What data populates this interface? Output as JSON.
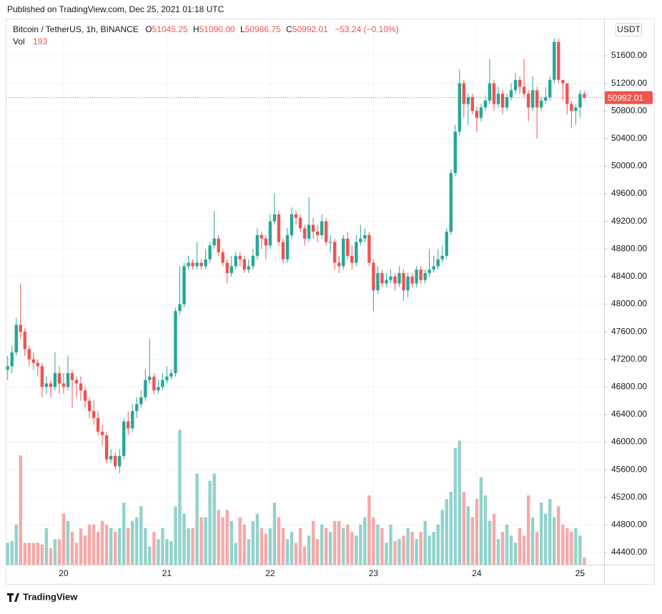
{
  "published": "Published on TradingView.com, Dec 25, 2021 01:18 UTC",
  "brand": "TradingView",
  "chart_data": {
    "type": "candlestick",
    "title": "Bitcoin / TetherUS, 1h, BINANCE",
    "readout": [
      {
        "key": "O",
        "value": "51045.25"
      },
      {
        "key": "H",
        "value": "51090.00"
      },
      {
        "key": "L",
        "value": "50986.75"
      },
      {
        "key": "C",
        "value": "50992.01"
      }
    ],
    "change": "−53.24 (−0.10%)",
    "volume_key": "Vol",
    "volume_readout": "193",
    "currency": "USDT",
    "last_price_label": "50992.01",
    "up_color": "#26a69a",
    "down_color": "#ef5350",
    "grid": true,
    "ylim": [
      44224,
      52097
    ],
    "yticks": [
      {
        "value": 44400,
        "label": "44400.00"
      },
      {
        "value": 44800,
        "label": "44800.00"
      },
      {
        "value": 45200,
        "label": "45200.00"
      },
      {
        "value": 45600,
        "label": "45600.00"
      },
      {
        "value": 46000,
        "label": "46000.00"
      },
      {
        "value": 46400,
        "label": "46400.00"
      },
      {
        "value": 46800,
        "label": "46800.00"
      },
      {
        "value": 47200,
        "label": "47200.00"
      },
      {
        "value": 47600,
        "label": "47600.00"
      },
      {
        "value": 48000,
        "label": "48000.00"
      },
      {
        "value": 48400,
        "label": "48400.00"
      },
      {
        "value": 48800,
        "label": "48800.00"
      },
      {
        "value": 49200,
        "label": "49200.00"
      },
      {
        "value": 49600,
        "label": "49600.00"
      },
      {
        "value": 50000,
        "label": "50000.00"
      },
      {
        "value": 50400,
        "label": "50400.00"
      },
      {
        "value": 50800,
        "label": "50800.00"
      },
      {
        "value": 51200,
        "label": "51200.00"
      },
      {
        "value": 51600,
        "label": "51600.00"
      }
    ],
    "categories": [
      null,
      null,
      null,
      null,
      null,
      null,
      null,
      null,
      null,
      null,
      null,
      null,
      null,
      "20",
      null,
      null,
      null,
      null,
      null,
      null,
      null,
      null,
      null,
      null,
      null,
      null,
      null,
      null,
      null,
      null,
      null,
      null,
      null,
      null,
      null,
      null,
      null,
      "21",
      null,
      null,
      null,
      null,
      null,
      null,
      null,
      null,
      null,
      null,
      null,
      null,
      null,
      null,
      null,
      null,
      null,
      null,
      null,
      null,
      null,
      null,
      null,
      "22",
      null,
      null,
      null,
      null,
      null,
      null,
      null,
      null,
      null,
      null,
      null,
      null,
      null,
      null,
      null,
      null,
      null,
      null,
      null,
      null,
      null,
      null,
      null,
      "23",
      null,
      null,
      null,
      null,
      null,
      null,
      null,
      null,
      null,
      null,
      null,
      null,
      null,
      null,
      null,
      null,
      null,
      null,
      null,
      null,
      null,
      null,
      null,
      "24",
      null,
      null,
      null,
      null,
      null,
      null,
      null,
      null,
      null,
      null,
      null,
      null,
      null,
      null,
      null,
      null,
      null,
      null,
      null,
      null,
      null,
      null,
      null,
      "25",
      null
    ],
    "open": [
      47050,
      47100,
      47300,
      47700,
      47600,
      47350,
      47200,
      47150,
      47100,
      46800,
      46850,
      46800,
      47000,
      46850,
      46800,
      47000,
      46900,
      46850,
      46750,
      46600,
      46450,
      46350,
      46150,
      46100,
      45750,
      45800,
      45650,
      45800,
      46300,
      46200,
      46450,
      46550,
      46650,
      46900,
      46950,
      46750,
      46800,
      46900,
      46950,
      47000,
      47900,
      48000,
      48550,
      48600,
      48550,
      48600,
      48550,
      48650,
      48850,
      48950,
      48750,
      48600,
      48450,
      48550,
      48700,
      48650,
      48500,
      48550,
      48700,
      49000,
      48950,
      48850,
      49200,
      49300,
      48900,
      48650,
      49000,
      49300,
      49250,
      49100,
      48950,
      49150,
      49050,
      49000,
      49200,
      48900,
      48900,
      48600,
      48550,
      48950,
      48700,
      48600,
      48900,
      48950,
      49000,
      48600,
      48200,
      48450,
      48300,
      48350,
      48400,
      48300,
      48450,
      48200,
      48400,
      48300,
      48500,
      48350,
      48450,
      48500,
      48550,
      48650,
      48700,
      49050,
      49900,
      50500,
      51200,
      50900,
      51000,
      50800,
      50700,
      50850,
      50950,
      51200,
      50900,
      51050,
      50850,
      51000,
      51100,
      51250,
      51150,
      51050,
      50850,
      51100,
      50850,
      50950,
      51000,
      51250,
      51800,
      51250,
      51200,
      50900,
      50800,
      50850,
      51045.25
    ],
    "high": [
      47250,
      47400,
      47800,
      48300,
      47650,
      47400,
      47300,
      47200,
      47150,
      46950,
      46900,
      47300,
      47100,
      47000,
      47250,
      47050,
      46950,
      46950,
      46800,
      46650,
      46600,
      46450,
      46250,
      46150,
      45900,
      45850,
      45900,
      46350,
      46450,
      46550,
      46650,
      46750,
      47050,
      47500,
      47000,
      46900,
      47000,
      47100,
      47050,
      47950,
      48550,
      48600,
      48700,
      48650,
      48900,
      48650,
      48800,
      48900,
      49350,
      49000,
      48800,
      48650,
      48700,
      48750,
      48750,
      48700,
      48650,
      48800,
      49100,
      49050,
      49000,
      49300,
      49600,
      49350,
      48950,
      49100,
      49400,
      49350,
      49300,
      49150,
      49550,
      49250,
      49150,
      49300,
      49250,
      49000,
      48950,
      48700,
      49000,
      49050,
      48850,
      49000,
      49150,
      49100,
      49050,
      48650,
      48550,
      48500,
      48450,
      48500,
      48450,
      48550,
      48500,
      48450,
      48450,
      48550,
      48550,
      48500,
      48800,
      48700,
      48800,
      48850,
      49100,
      49950,
      50600,
      51400,
      51250,
      51050,
      51050,
      50850,
      50900,
      51000,
      51550,
      51250,
      51150,
      51100,
      51050,
      51200,
      51350,
      51300,
      51550,
      51100,
      51300,
      51150,
      51000,
      51150,
      51300,
      51850,
      51850,
      51250,
      51200,
      50950,
      50900,
      51100,
      51090
    ],
    "low": [
      46900,
      47000,
      47250,
      47500,
      47250,
      47100,
      47050,
      46950,
      46650,
      46700,
      46650,
      46750,
      46700,
      46700,
      46750,
      46500,
      46650,
      46600,
      46500,
      46350,
      46250,
      46100,
      45950,
      45700,
      45700,
      45600,
      45550,
      45750,
      46100,
      46150,
      46350,
      46500,
      46600,
      46850,
      46700,
      46700,
      46750,
      46850,
      46900,
      46950,
      47850,
      47950,
      48500,
      48500,
      48500,
      48500,
      48500,
      48600,
      48800,
      48700,
      48550,
      48300,
      48400,
      48500,
      48550,
      48450,
      48450,
      48500,
      48650,
      48800,
      48650,
      48800,
      49150,
      48850,
      48600,
      48600,
      48950,
      49150,
      49050,
      48850,
      48900,
      48950,
      48900,
      48950,
      48850,
      48750,
      48500,
      48450,
      48500,
      48650,
      48500,
      48550,
      48850,
      48900,
      48550,
      47900,
      48150,
      48250,
      48250,
      48300,
      48200,
      48250,
      48050,
      48100,
      48250,
      48250,
      48300,
      48300,
      48400,
      48450,
      48500,
      48600,
      48650,
      49000,
      49850,
      50450,
      50700,
      50600,
      50750,
      50500,
      50650,
      50800,
      50900,
      50800,
      50850,
      50750,
      50800,
      50950,
      51050,
      51050,
      51000,
      50650,
      50800,
      50400,
      50800,
      50900,
      50950,
      51200,
      51200,
      50950,
      50750,
      50550,
      50600,
      50700,
      50986.75
    ],
    "close": [
      47100,
      47300,
      47700,
      47600,
      47350,
      47200,
      47150,
      47100,
      46800,
      46850,
      46800,
      47000,
      46850,
      46800,
      47000,
      46900,
      46850,
      46750,
      46600,
      46450,
      46350,
      46150,
      46100,
      45750,
      45800,
      45650,
      45800,
      46300,
      46200,
      46450,
      46550,
      46650,
      46900,
      46950,
      46750,
      46800,
      46900,
      46950,
      47000,
      47900,
      48000,
      48550,
      48600,
      48550,
      48600,
      48550,
      48650,
      48850,
      48950,
      48750,
      48600,
      48450,
      48550,
      48700,
      48650,
      48500,
      48550,
      48700,
      49000,
      48950,
      48850,
      49200,
      49300,
      48900,
      48650,
      49000,
      49300,
      49250,
      49100,
      48950,
      49150,
      49050,
      49000,
      49200,
      48900,
      48900,
      48600,
      48550,
      48950,
      48700,
      48600,
      48900,
      48950,
      49000,
      48600,
      48200,
      48450,
      48300,
      48350,
      48400,
      48300,
      48450,
      48200,
      48400,
      48300,
      48500,
      48350,
      48450,
      48500,
      48550,
      48650,
      48700,
      49050,
      49900,
      50500,
      51200,
      50900,
      51000,
      50800,
      50700,
      50850,
      50950,
      51200,
      50900,
      51050,
      50850,
      51000,
      51100,
      51250,
      51150,
      51050,
      50850,
      51100,
      50850,
      50950,
      51000,
      51250,
      51800,
      51250,
      51200,
      50900,
      50800,
      50850,
      51045.25,
      50992.01
    ],
    "volume": [
      600,
      650,
      1100,
      3000,
      600,
      600,
      600,
      600,
      550,
      1000,
      450,
      700,
      700,
      1400,
      1200,
      900,
      600,
      1000,
      800,
      1100,
      1100,
      900,
      1200,
      1100,
      1000,
      900,
      1000,
      1700,
      1000,
      1200,
      1300,
      1600,
      1000,
      500,
      900,
      700,
      1000,
      700,
      650,
      1600,
      3700,
      1400,
      1000,
      1000,
      2500,
      1300,
      1300,
      2300,
      2500,
      1500,
      1300,
      1500,
      1200,
      600,
      1300,
      1100,
      700,
      1200,
      1400,
      1000,
      850,
      1000,
      1700,
      1300,
      1000,
      700,
      900,
      600,
      1000,
      500,
      800,
      1200,
      700,
      1100,
      1000,
      900,
      1200,
      1200,
      1000,
      1100,
      900,
      800,
      1100,
      1300,
      1900,
      1300,
      1100,
      1000,
      600,
      1100,
      650,
      700,
      800,
      1000,
      900,
      700,
      900,
      1200,
      800,
      900,
      1100,
      1500,
      1800,
      2000,
      3200,
      3400,
      2000,
      1600,
      1300,
      1800,
      2400,
      1900,
      1200,
      1400,
      700,
      900,
      1100,
      800,
      600,
      1000,
      800,
      1900,
      1300,
      900,
      1700,
      1400,
      1800,
      1300,
      1600,
      1100,
      1000,
      900,
      1000,
      800,
      193
    ]
  }
}
